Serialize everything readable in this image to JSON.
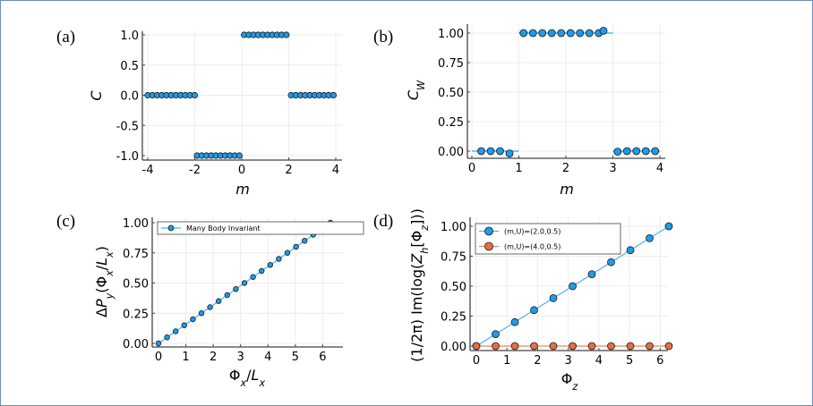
{
  "chart_data": [
    {
      "panel": "(a)",
      "type": "scatter",
      "xlabel": [
        {
          "t": "m",
          "italic": true
        }
      ],
      "ylabel": [
        {
          "t": "C",
          "italic": true
        }
      ],
      "xlim": [
        -4,
        4
      ],
      "ylim": [
        -1,
        1
      ],
      "xticks": [
        -4,
        -2,
        0,
        2,
        4
      ],
      "xticklabels": [
        "-4",
        "-2",
        "0",
        "2",
        "4"
      ],
      "yticks": [
        -1,
        -0.5,
        0,
        0.5,
        1
      ],
      "yticklabels": [
        "-1.0",
        "-0.5",
        "0.0",
        "0.5",
        "1.0"
      ],
      "grid": true,
      "series": [
        {
          "name": "C",
          "color": "#1f9be8",
          "marker": "circle",
          "line": false,
          "x": [
            -4,
            -3.8,
            -3.6,
            -3.4,
            -3.2,
            -3.0,
            -2.8,
            -2.6,
            -2.4,
            -2.2,
            -2.0,
            -1.9,
            -1.7,
            -1.5,
            -1.3,
            -1.1,
            -0.9,
            -0.7,
            -0.5,
            -0.3,
            -0.1,
            0.1,
            0.3,
            0.5,
            0.7,
            0.9,
            1.1,
            1.3,
            1.5,
            1.7,
            1.9,
            2.1,
            2.3,
            2.5,
            2.7,
            2.9,
            3.1,
            3.3,
            3.5,
            3.7,
            3.9
          ],
          "y": [
            0,
            0,
            0,
            0,
            0,
            0,
            0,
            0,
            0,
            0,
            0,
            -1,
            -1,
            -1,
            -1,
            -1,
            -1,
            -1,
            -1,
            -1,
            -1,
            1,
            1,
            1,
            1,
            1,
            1,
            1,
            1,
            1,
            1,
            0,
            0,
            0,
            0,
            0,
            0,
            0,
            0,
            0,
            0
          ]
        }
      ]
    },
    {
      "panel": "(b)",
      "type": "scatter",
      "xlabel": [
        {
          "t": "m",
          "italic": true
        }
      ],
      "ylabel": [
        {
          "t": "C",
          "italic": true
        },
        {
          "t": "W",
          "italic": true,
          "sub": true
        }
      ],
      "xlim": [
        0,
        4
      ],
      "ylim": [
        0,
        1
      ],
      "xticks": [
        0,
        1,
        2,
        3,
        4
      ],
      "xticklabels": [
        "0",
        "1",
        "2",
        "3",
        "4"
      ],
      "yticks": [
        0,
        0.25,
        0.5,
        0.75,
        1
      ],
      "yticklabels": [
        "0.00",
        "0.25",
        "0.50",
        "0.75",
        "1.00"
      ],
      "grid": true,
      "reference_segments": [
        {
          "x": [
            0,
            1
          ],
          "y": 0
        },
        {
          "x": [
            1,
            3
          ],
          "y": 1
        },
        {
          "x": [
            3,
            4
          ],
          "y": 0
        }
      ],
      "series": [
        {
          "name": "C_W",
          "color": "#1f9be8",
          "marker": "circle",
          "line": false,
          "x": [
            0.2,
            0.4,
            0.6,
            0.8,
            1.1,
            1.3,
            1.5,
            1.7,
            1.9,
            2.1,
            2.3,
            2.5,
            2.7,
            2.8,
            3.1,
            3.3,
            3.5,
            3.7,
            3.9
          ],
          "y": [
            0,
            0,
            0,
            -0.02,
            1,
            1,
            1,
            1,
            1,
            1,
            1,
            1,
            1,
            1.02,
            -0.005,
            0,
            0,
            0,
            0
          ]
        }
      ]
    },
    {
      "panel": "(c)",
      "type": "line",
      "xlabel": [
        {
          "t": "Φ"
        },
        {
          "t": "x",
          "italic": true,
          "sub": true
        },
        {
          "t": "/"
        },
        {
          "t": "L",
          "italic": true
        },
        {
          "t": "x",
          "italic": true,
          "sub": true
        }
      ],
      "ylabel": [
        {
          "t": "Δ"
        },
        {
          "t": "P",
          "italic": true
        },
        {
          "t": "y",
          "italic": true,
          "sub": true
        },
        {
          "t": "(Φ"
        },
        {
          "t": "x",
          "italic": true,
          "sub": true
        },
        {
          "t": "/"
        },
        {
          "t": "L",
          "italic": true
        },
        {
          "t": "x",
          "italic": true,
          "sub": true
        },
        {
          "t": ")"
        }
      ],
      "xlim": [
        0,
        6.283
      ],
      "ylim": [
        0,
        1
      ],
      "xticks": [
        0,
        1,
        2,
        3,
        4,
        5,
        6
      ],
      "xticklabels": [
        "0",
        "1",
        "2",
        "3",
        "4",
        "5",
        "6"
      ],
      "yticks": [
        0,
        0.25,
        0.5,
        0.75,
        1
      ],
      "yticklabels": [
        "0.00",
        "0.25",
        "0.50",
        "0.75",
        "1.00"
      ],
      "grid": true,
      "legend": "top-left",
      "series": [
        {
          "name": "Many Body Invariant",
          "color": "#1f9be8",
          "marker": "circle",
          "line": true,
          "x": [
            0,
            0.314,
            0.628,
            0.942,
            1.257,
            1.571,
            1.885,
            2.199,
            2.513,
            2.827,
            3.142,
            3.456,
            3.77,
            4.084,
            4.398,
            4.712,
            5.027,
            5.341,
            5.655,
            5.969,
            6.283
          ],
          "y": [
            0,
            0.05,
            0.1,
            0.15,
            0.2,
            0.25,
            0.3,
            0.35,
            0.4,
            0.45,
            0.5,
            0.55,
            0.6,
            0.65,
            0.7,
            0.75,
            0.8,
            0.85,
            0.9,
            0.95,
            1.0
          ]
        }
      ]
    },
    {
      "panel": "(d)",
      "type": "line",
      "xlabel": [
        {
          "t": "Φ"
        },
        {
          "t": "z",
          "italic": true,
          "sub": true
        }
      ],
      "ylabel": [
        {
          "t": "(1/2π) Im(log("
        },
        {
          "t": "Z",
          "italic": true
        },
        {
          "t": "h",
          "italic": true,
          "sub": true
        },
        {
          "t": "[Φ"
        },
        {
          "t": "z",
          "italic": true,
          "sub": true
        },
        {
          "t": "]))"
        }
      ],
      "xlim": [
        0,
        6.283
      ],
      "ylim": [
        0,
        1
      ],
      "xticks": [
        0,
        1,
        2,
        3,
        4,
        5,
        6
      ],
      "xticklabels": [
        "0",
        "1",
        "2",
        "3",
        "4",
        "5",
        "6"
      ],
      "yticks": [
        0,
        0.25,
        0.5,
        0.75,
        1
      ],
      "yticklabels": [
        "0.00",
        "0.25",
        "0.50",
        "0.75",
        "1.00"
      ],
      "grid": true,
      "legend": "top-left",
      "series": [
        {
          "name": "(m,U)=(2.0,0.5)",
          "color": "#1f9be8",
          "marker": "circle",
          "line": true,
          "x": [
            0,
            0.628,
            1.257,
            1.885,
            2.513,
            3.142,
            3.77,
            4.398,
            5.027,
            5.655,
            6.283
          ],
          "y": [
            0,
            0.1,
            0.2,
            0.3,
            0.4,
            0.5,
            0.6,
            0.7,
            0.8,
            0.9,
            1.0
          ]
        },
        {
          "name": "(m,U)=(4.0,0.5)",
          "color": "#e26f46",
          "marker": "circle",
          "line": true,
          "x": [
            0,
            0.628,
            1.257,
            1.885,
            2.513,
            3.142,
            3.77,
            4.398,
            5.027,
            5.655,
            6.283
          ],
          "y": [
            0,
            0,
            0,
            0,
            0,
            0,
            0,
            0,
            0,
            0,
            0
          ]
        }
      ]
    }
  ]
}
